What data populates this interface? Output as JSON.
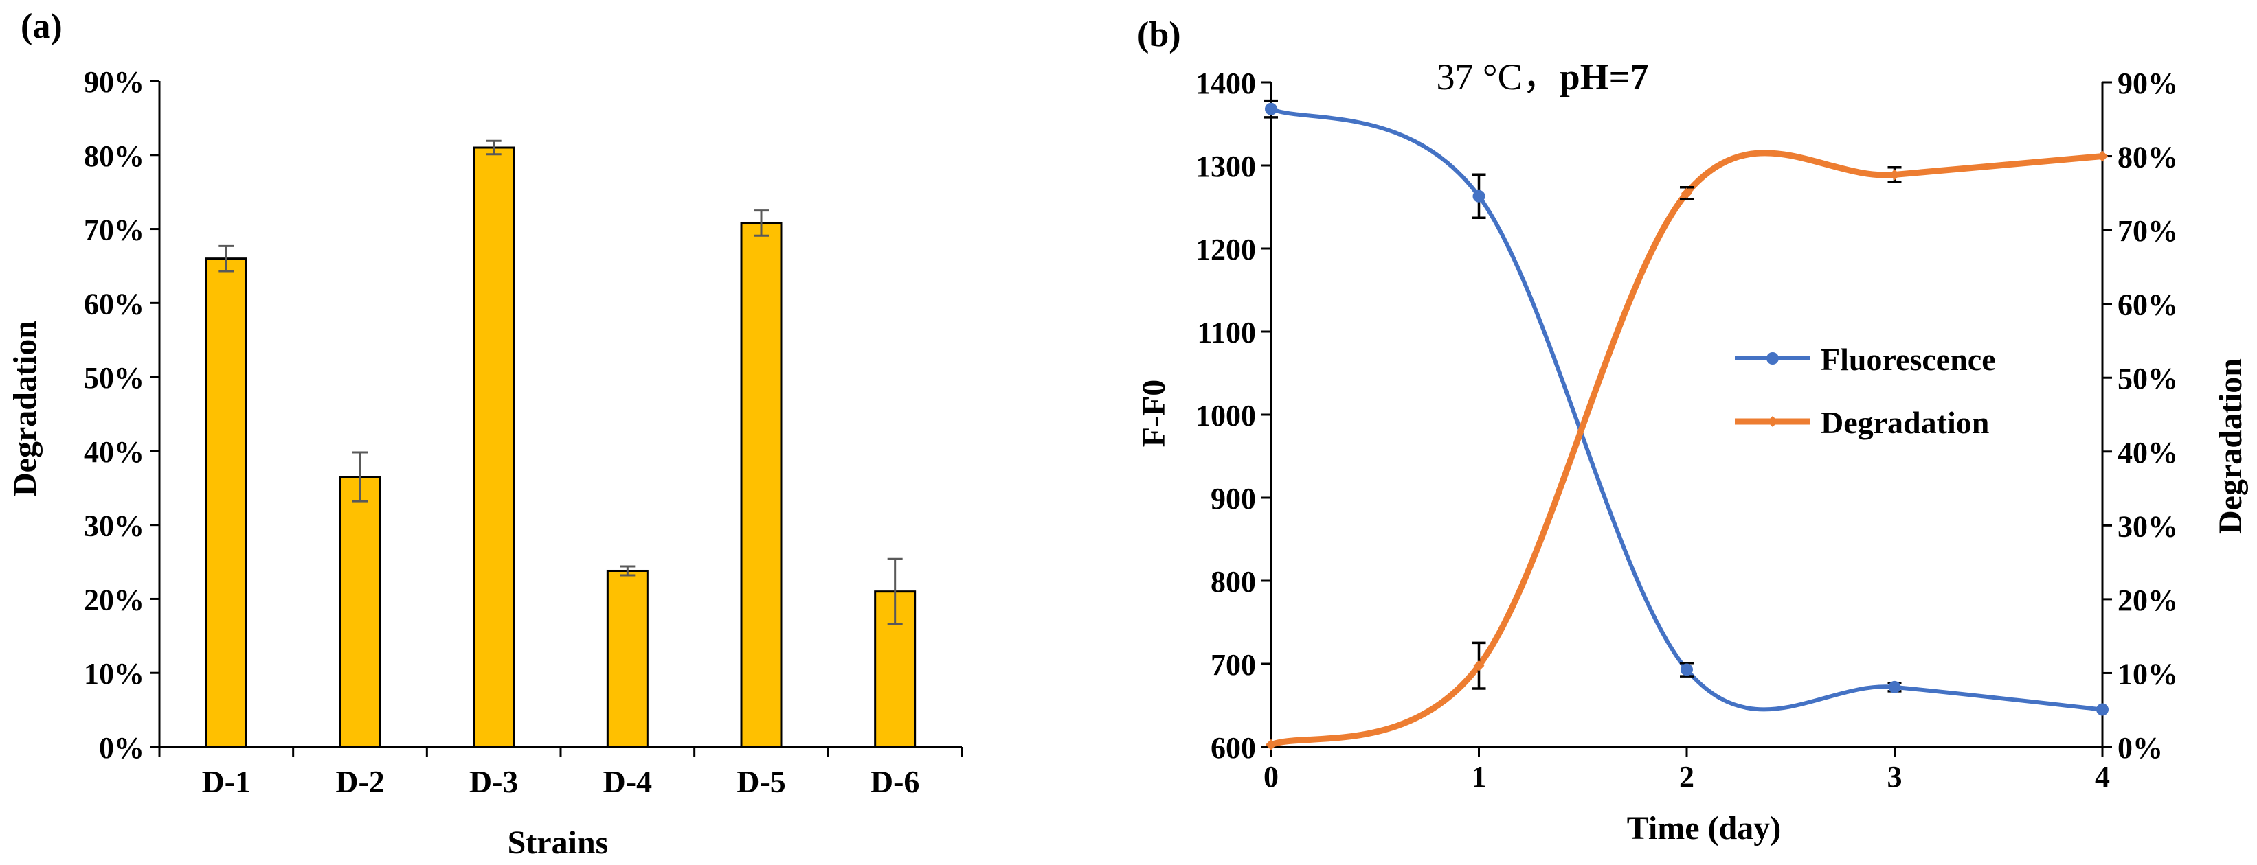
{
  "chart_data": [
    {
      "type": "bar",
      "panel_label": "(a)",
      "title": "",
      "xlabel": "Strains",
      "ylabel": "Degradation",
      "categories": [
        "D-1",
        "D-2",
        "D-3",
        "D-4",
        "D-5",
        "D-6"
      ],
      "values": [
        66,
        36.5,
        81,
        23.8,
        70.8,
        21
      ],
      "errors": [
        1.7,
        3.3,
        0.9,
        0.6,
        1.7,
        4.4
      ],
      "ylim": [
        0,
        90
      ],
      "yticks": [
        0,
        10,
        20,
        30,
        40,
        50,
        60,
        70,
        80,
        90
      ],
      "ytick_labels": [
        "0%",
        "10%",
        "20%",
        "30%",
        "40%",
        "50%",
        "60%",
        "70%",
        "80%",
        "90%"
      ],
      "bar_color": "#FFC000",
      "error_color": "#595959",
      "grid": false
    },
    {
      "type": "line",
      "panel_label": "(b)",
      "title_text": "37 °C，",
      "title_bold": "pH=7",
      "xlabel": "Time (day)",
      "ylabel_left": "F-F0",
      "ylabel_right": "Degradation",
      "x": [
        0,
        1,
        2,
        3,
        4
      ],
      "xlim": [
        0,
        4
      ],
      "ylim_left": [
        600,
        1400
      ],
      "ylim_right": [
        0,
        90
      ],
      "yticks_left": [
        600,
        700,
        800,
        900,
        1000,
        1100,
        1200,
        1300,
        1400
      ],
      "yticks_right": [
        0,
        10,
        20,
        30,
        40,
        50,
        60,
        70,
        80,
        90
      ],
      "ytick_labels_right": [
        "0%",
        "10%",
        "20%",
        "30%",
        "40%",
        "50%",
        "60%",
        "70%",
        "80%",
        "90%"
      ],
      "series": [
        {
          "name": "Fluorescence",
          "axis": "left",
          "color": "#4472C4",
          "marker": "circle",
          "values": [
            1368,
            1263,
            693,
            672,
            645
          ],
          "errors": [
            10,
            26,
            8,
            5,
            0
          ]
        },
        {
          "name": "Degradation",
          "axis": "right",
          "color": "#ED7D31",
          "marker": "diamond",
          "values": [
            0.3,
            11,
            75,
            77.5,
            80
          ],
          "errors": [
            0,
            3.1,
            0.8,
            1,
            0
          ]
        }
      ],
      "legend_position": "right-center",
      "grid": false
    }
  ]
}
